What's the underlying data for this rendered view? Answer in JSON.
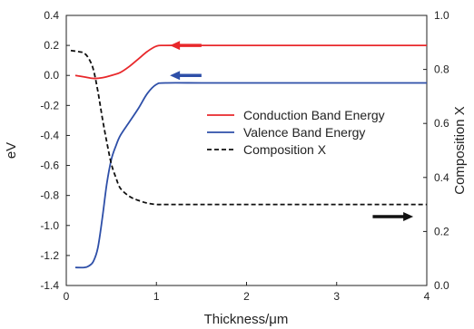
{
  "chart_data": {
    "type": "line",
    "xlabel": "Thickness/μm",
    "ylabel_left": "eV",
    "ylabel_right": "Composition X",
    "xlim": [
      0,
      4
    ],
    "ylim_left": [
      -1.4,
      0.4
    ],
    "ylim_right": [
      0.0,
      1.0
    ],
    "x_ticks": [
      "0",
      "1",
      "2",
      "3",
      "4"
    ],
    "y_left_ticks": [
      "0.4",
      "0.2",
      "0.0",
      "-0.2",
      "-0.4",
      "-0.6",
      "-0.8",
      "-1.0",
      "-1.2",
      "-1.4"
    ],
    "y_right_ticks": [
      "1.0",
      "0.8",
      "0.6",
      "0.4",
      "0.2",
      "0.0"
    ],
    "grid": false,
    "legend_position": "right-center",
    "series": [
      {
        "name": "Conduction Band Energy",
        "axis": "left",
        "color": "#e8282b",
        "dash": "solid",
        "x": [
          0.1,
          0.2,
          0.3,
          0.4,
          0.5,
          0.6,
          0.7,
          0.8,
          0.9,
          1.0,
          1.1,
          1.5,
          2.0,
          2.5,
          3.0,
          3.5,
          4.0
        ],
        "y": [
          0.0,
          -0.01,
          -0.02,
          -0.015,
          0.0,
          0.02,
          0.06,
          0.11,
          0.16,
          0.195,
          0.2,
          0.2,
          0.2,
          0.2,
          0.2,
          0.2,
          0.2
        ]
      },
      {
        "name": "Valence Band Energy",
        "axis": "left",
        "color": "#2e4fa8",
        "dash": "solid",
        "x": [
          0.1,
          0.2,
          0.25,
          0.3,
          0.35,
          0.4,
          0.45,
          0.5,
          0.55,
          0.6,
          0.7,
          0.8,
          0.9,
          1.0,
          1.1,
          1.5,
          2.0,
          2.5,
          3.0,
          3.5,
          4.0
        ],
        "y": [
          -1.28,
          -1.28,
          -1.27,
          -1.24,
          -1.15,
          -0.95,
          -0.72,
          -0.56,
          -0.47,
          -0.4,
          -0.31,
          -0.22,
          -0.12,
          -0.06,
          -0.05,
          -0.05,
          -0.05,
          -0.05,
          -0.05,
          -0.05,
          -0.05
        ]
      },
      {
        "name": "Composition X",
        "axis": "right",
        "color": "#111111",
        "dash": "dashed",
        "x": [
          0.05,
          0.15,
          0.2,
          0.25,
          0.3,
          0.35,
          0.4,
          0.45,
          0.5,
          0.55,
          0.6,
          0.7,
          0.8,
          0.9,
          1.0,
          1.1,
          1.5,
          2.0,
          2.5,
          3.0,
          3.5,
          4.0
        ],
        "y": [
          0.87,
          0.865,
          0.86,
          0.84,
          0.8,
          0.72,
          0.62,
          0.53,
          0.45,
          0.4,
          0.36,
          0.33,
          0.315,
          0.305,
          0.3,
          0.3,
          0.3,
          0.3,
          0.3,
          0.3,
          0.3,
          0.3
        ]
      }
    ],
    "annotations": [
      {
        "type": "arrow",
        "direction": "left",
        "color": "#e8282b",
        "from": [
          1.5,
          0.2
        ],
        "to": [
          1.15,
          0.2
        ],
        "axis": "left"
      },
      {
        "type": "arrow",
        "direction": "left",
        "color": "#2e4fa8",
        "from": [
          1.5,
          0.0
        ],
        "to": [
          1.15,
          0.0
        ],
        "axis": "left"
      },
      {
        "type": "arrow",
        "direction": "right",
        "color": "#111111",
        "from": [
          3.4,
          0.255
        ],
        "to": [
          3.85,
          0.255
        ],
        "axis": "right"
      }
    ]
  }
}
